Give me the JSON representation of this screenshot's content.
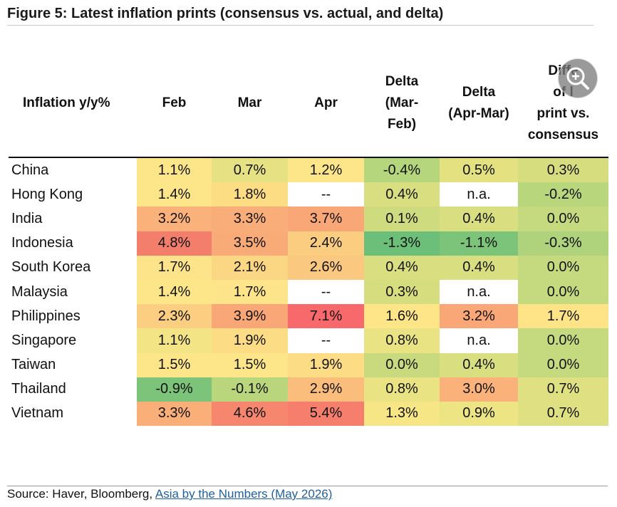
{
  "title": "Figure 5: Latest inflation prints (consensus vs. actual, and delta)",
  "source": {
    "prefix": "Source: Haver, Bloomberg, ",
    "link_text": "Asia by the Numbers (May 2026)"
  },
  "chart_data": {
    "type": "table",
    "row_header": "Inflation y/y%",
    "columns": [
      "Feb",
      "Mar",
      "Apr",
      "Delta (Mar-Feb)",
      "Delta (Apr-Mar)",
      "Difference of latest print vs. consensus"
    ],
    "column_labels": [
      [
        "Feb"
      ],
      [
        "Mar"
      ],
      [
        "Apr"
      ],
      [
        "Delta",
        "(Mar-",
        "Feb)"
      ],
      [
        "Delta",
        "(Apr-Mar)"
      ],
      [
        "Diffe",
        "of l",
        "print vs.",
        "consensus"
      ]
    ],
    "rows": [
      {
        "name": "China",
        "values": [
          "1.1%",
          "0.7%",
          "1.2%",
          "-0.4%",
          "0.5%",
          "0.3%"
        ],
        "colors": [
          "#fde68a",
          "#e6e283",
          "#fde68a",
          "#b5d67d",
          "#e4e181",
          "#d6dd7f"
        ]
      },
      {
        "name": "Hong Kong",
        "values": [
          "1.4%",
          "1.8%",
          "--",
          "0.4%",
          "n.a.",
          "-0.2%"
        ],
        "colors": [
          "#fde68a",
          "#fcdd84",
          "#ffffff",
          "#d9df80",
          "#ffffff",
          "#b8d77d"
        ]
      },
      {
        "name": "India",
        "values": [
          "3.2%",
          "3.3%",
          "3.7%",
          "0.1%",
          "0.4%",
          "0.0%"
        ],
        "colors": [
          "#fab27a",
          "#f9ae79",
          "#f9a777",
          "#cfdb7f",
          "#d9df80",
          "#c5d97e"
        ]
      },
      {
        "name": "Indonesia",
        "values": [
          "4.8%",
          "3.5%",
          "2.4%",
          "-1.3%",
          "-1.1%",
          "-0.3%"
        ],
        "colors": [
          "#f47e6c",
          "#f9ab77",
          "#fbcd80",
          "#6cbf78",
          "#7cc47a",
          "#aed37c"
        ]
      },
      {
        "name": "South Korea",
        "values": [
          "1.7%",
          "2.1%",
          "2.6%",
          "0.4%",
          "0.4%",
          "0.0%"
        ],
        "colors": [
          "#fde389",
          "#fcd783",
          "#fbc87f",
          "#d9df80",
          "#d9df80",
          "#c5d97e"
        ]
      },
      {
        "name": "Malaysia",
        "values": [
          "1.4%",
          "1.7%",
          "--",
          "0.3%",
          "n.a.",
          "0.0%"
        ],
        "colors": [
          "#fde68a",
          "#fde389",
          "#ffffff",
          "#d6dd7f",
          "#ffffff",
          "#c5d97e"
        ]
      },
      {
        "name": "Philippines",
        "values": [
          "2.3%",
          "3.9%",
          "7.1%",
          "1.6%",
          "3.2%",
          "1.7%"
        ],
        "colors": [
          "#fbce81",
          "#f9a777",
          "#f8696b",
          "#fde588",
          "#f9a777",
          "#fee487"
        ]
      },
      {
        "name": "Singapore",
        "values": [
          "1.1%",
          "1.9%",
          "--",
          "0.8%",
          "n.a.",
          "0.0%"
        ],
        "colors": [
          "#f3e585",
          "#fcdc84",
          "#ffffff",
          "#e9e383",
          "#ffffff",
          "#c5d97e"
        ]
      },
      {
        "name": "Taiwan",
        "values": [
          "1.5%",
          "1.5%",
          "1.9%",
          "0.0%",
          "0.4%",
          "0.0%"
        ],
        "colors": [
          "#fde68a",
          "#fde68a",
          "#fcdc84",
          "#c9da7e",
          "#d9df80",
          "#c5d97e"
        ]
      },
      {
        "name": "Thailand",
        "values": [
          "-0.9%",
          "-0.1%",
          "2.9%",
          "0.8%",
          "3.0%",
          "0.7%"
        ],
        "colors": [
          "#7cc47a",
          "#bad67d",
          "#fbbd7c",
          "#e9e383",
          "#fab27a",
          "#dfe081"
        ]
      },
      {
        "name": "Vietnam",
        "values": [
          "3.3%",
          "4.6%",
          "5.4%",
          "1.3%",
          "0.9%",
          "0.7%"
        ],
        "colors": [
          "#faaf79",
          "#f6866e",
          "#f57e6c",
          "#f6e686",
          "#ede484",
          "#dfe081"
        ]
      }
    ]
  }
}
